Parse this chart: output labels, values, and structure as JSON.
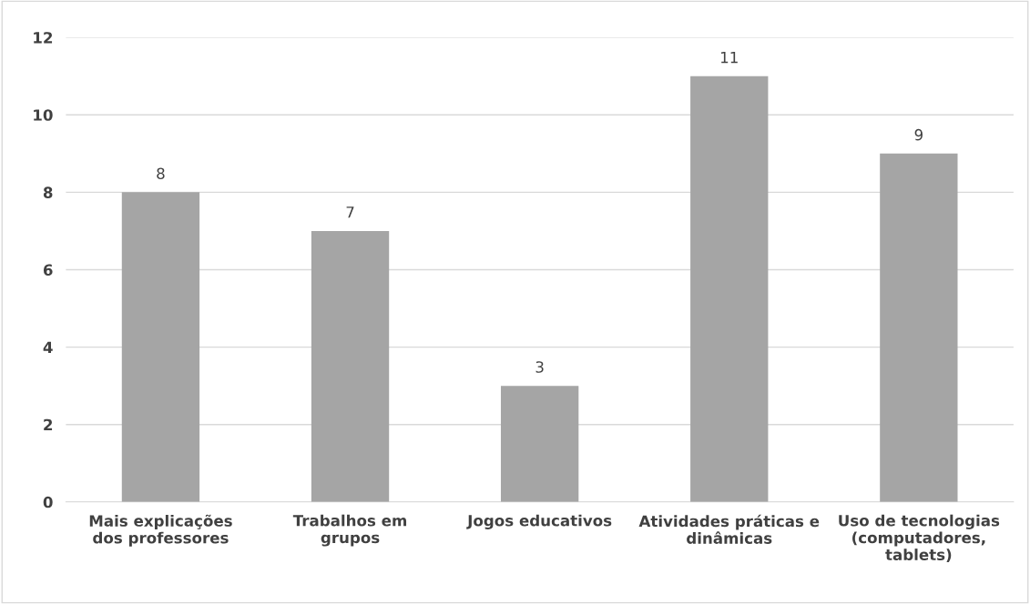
{
  "chart_data": {
    "type": "bar",
    "categories": [
      "Mais explicações\ndos professores",
      "Trabalhos em\ngrupos",
      "Jogos educativos",
      "Atividades práticas e\ndinâmicas",
      "Uso de tecnologias\n(computadores,\ntablets)"
    ],
    "values": [
      8,
      7,
      3,
      11,
      9
    ],
    "color": "#a5a5a5",
    "ylim": [
      0,
      12
    ],
    "yticks": [
      0,
      2,
      4,
      6,
      8,
      10,
      12
    ],
    "grid": "y",
    "data_labels": true
  }
}
